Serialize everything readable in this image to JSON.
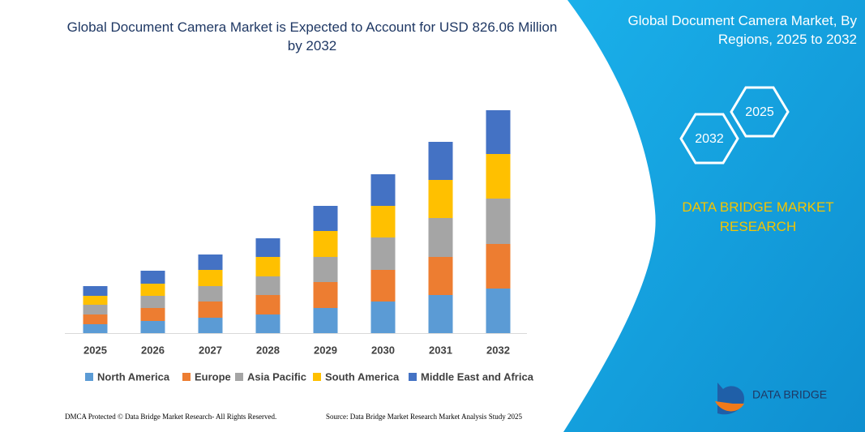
{
  "chart_data": {
    "type": "bar",
    "stacked": true,
    "title": "Global Document Camera Market is Expected to Account for USD 826.06 Million by 2032",
    "categories": [
      "2025",
      "2026",
      "2027",
      "2028",
      "2029",
      "2030",
      "2031",
      "2032"
    ],
    "series": [
      {
        "name": "North America",
        "color": "#5b9bd5",
        "values": [
          11,
          15,
          19,
          23,
          31,
          39,
          47,
          55
        ]
      },
      {
        "name": "Europe",
        "color": "#ed7d31",
        "values": [
          12,
          16,
          20,
          24,
          32,
          39,
          47,
          55
        ]
      },
      {
        "name": "Asia Pacific",
        "color": "#a5a5a5",
        "values": [
          12,
          15,
          19,
          23,
          31,
          40,
          48,
          56
        ]
      },
      {
        "name": "South America",
        "color": "#ffc000",
        "values": [
          11,
          15,
          20,
          24,
          32,
          39,
          47,
          55
        ]
      },
      {
        "name": "Middle East and Africa",
        "color": "#4472c4",
        "values": [
          12,
          16,
          19,
          23,
          31,
          39,
          47,
          54
        ]
      }
    ]
  },
  "side_panel": {
    "title": "Global Document Camera Market, By Regions, 2025 to 2032",
    "hexagons": [
      "2025",
      "2032"
    ],
    "brand": "DATA BRIDGE MARKET RESEARCH"
  },
  "logo": "DATA BRIDGE",
  "footer": {
    "left": "DMCA Protected © Data Bridge Market Research- All Rights Reserved.",
    "right": "Source: Data Bridge Market Research Market Analysis Study 2025"
  }
}
